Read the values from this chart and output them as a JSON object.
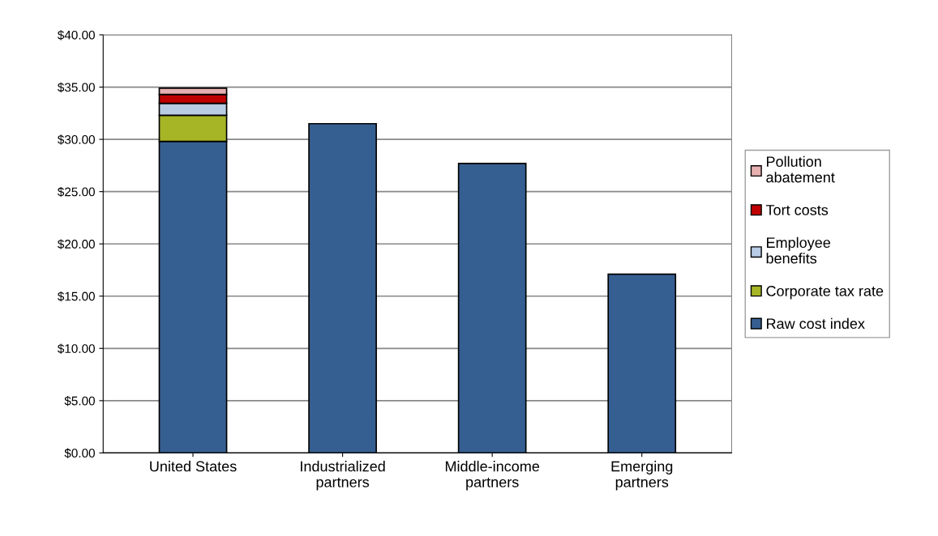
{
  "chart_data": {
    "type": "bar",
    "stacked": true,
    "categories": [
      "United States",
      "Industrialized\npartners",
      "Middle-income\npartners",
      "Emerging\npartners"
    ],
    "series": [
      {
        "name": "Raw cost index",
        "color": "#365f91",
        "values": [
          29.8,
          31.5,
          27.7,
          17.1
        ]
      },
      {
        "name": "Corporate tax rate",
        "color": "#a5b526",
        "values": [
          2.5,
          null,
          null,
          null
        ]
      },
      {
        "name": "Employee\nbenefits",
        "color": "#b8cce4",
        "values": [
          1.15,
          null,
          null,
          null
        ]
      },
      {
        "name": "Tort costs",
        "color": "#c00000",
        "values": [
          0.85,
          null,
          null,
          null
        ]
      },
      {
        "name": "Pollution\nabatement",
        "color": "#e6b0b0",
        "values": [
          0.6,
          null,
          null,
          null
        ]
      }
    ],
    "ylim": [
      0,
      40
    ],
    "yticks": [
      {
        "value": 0,
        "label": "$0.00"
      },
      {
        "value": 5,
        "label": "$5.00"
      },
      {
        "value": 10,
        "label": "$10.00"
      },
      {
        "value": 15,
        "label": "$15.00"
      },
      {
        "value": 20,
        "label": "$20.00"
      },
      {
        "value": 25,
        "label": "$25.00"
      },
      {
        "value": 30,
        "label": "$30.00"
      },
      {
        "value": 35,
        "label": "$35.00"
      },
      {
        "value": 40,
        "label": "$40.00"
      }
    ],
    "grid": "y",
    "legend": "right"
  }
}
